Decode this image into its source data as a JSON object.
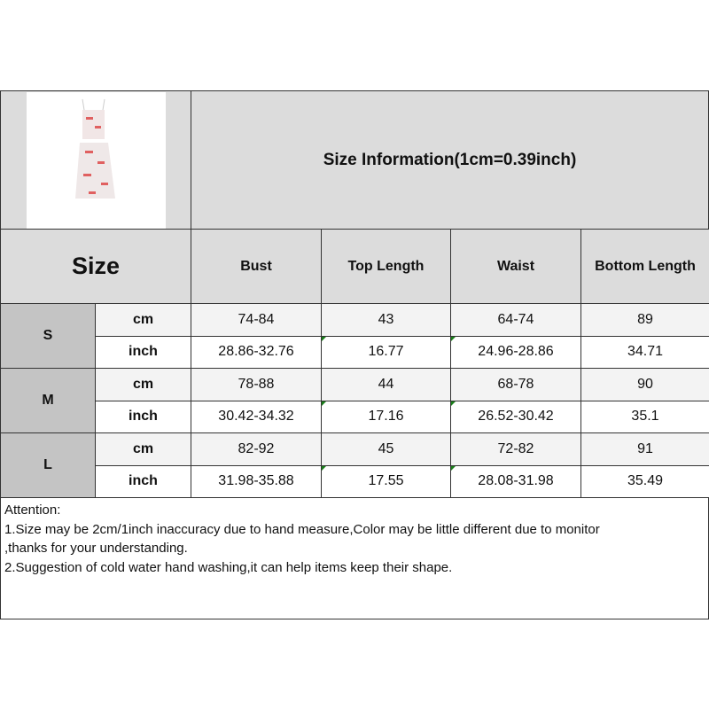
{
  "title": "Size Information(1cm=0.39inch)",
  "size_label": "Size",
  "columns": [
    "Bust",
    "Top Length",
    "Waist",
    "Bottom Length"
  ],
  "rows": [
    {
      "size": "S",
      "cm": {
        "unit": "cm",
        "values": [
          "74-84",
          "43",
          "64-74",
          "89"
        ]
      },
      "inch": {
        "unit": "inch",
        "values": [
          "28.86-32.76",
          "16.77",
          "24.96-28.86",
          "34.71"
        ]
      }
    },
    {
      "size": "M",
      "cm": {
        "unit": "cm",
        "values": [
          "78-88",
          "44",
          "68-78",
          "90"
        ]
      },
      "inch": {
        "unit": "inch",
        "values": [
          "30.42-34.32",
          "17.16",
          "26.52-30.42",
          "35.1"
        ]
      }
    },
    {
      "size": "L",
      "cm": {
        "unit": "cm",
        "values": [
          "82-92",
          "45",
          "72-82",
          "91"
        ]
      },
      "inch": {
        "unit": "inch",
        "values": [
          "31.98-35.88",
          "17.55",
          "28.08-31.98",
          "35.49"
        ]
      }
    }
  ],
  "notes": [
    "Attention:",
    "1.Size may be 2cm/1inch inaccuracy due to hand measure,Color may be little different due to monitor",
    ",thanks for your understanding.",
    "2.Suggestion of cold water hand washing,it can help items keep their shape."
  ]
}
